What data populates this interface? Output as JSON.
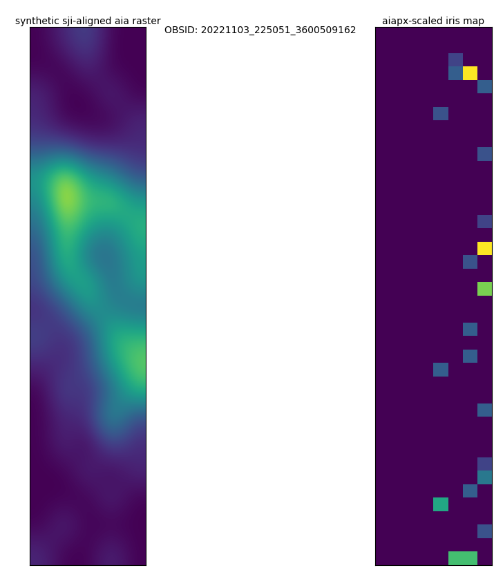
{
  "suptitle": "OBSID: 20221103_225051_3600509162",
  "chart_data": [
    {
      "type": "heatmap",
      "title": "synthetic sji-aligned aia raster",
      "tick_labels": false,
      "cells": [
        [
          0.2,
          0.25,
          0.3,
          0.2,
          0.2
        ],
        [
          0.2,
          0.2,
          0.25,
          0.2,
          0.2
        ],
        [
          0.25,
          0.2,
          0.2,
          0.25,
          0.2
        ],
        [
          0.25,
          0.2,
          0.2,
          0.2,
          0.25
        ],
        [
          0.3,
          0.3,
          0.25,
          0.25,
          0.25
        ],
        [
          0.45,
          0.6,
          0.45,
          0.4,
          0.3
        ],
        [
          0.4,
          0.65,
          0.5,
          0.55,
          0.45
        ],
        [
          0.35,
          0.55,
          0.45,
          0.4,
          0.5
        ],
        [
          0.3,
          0.55,
          0.35,
          0.35,
          0.45
        ],
        [
          0.3,
          0.45,
          0.5,
          0.35,
          0.45
        ],
        [
          0.25,
          0.3,
          0.45,
          0.4,
          0.35
        ],
        [
          0.3,
          0.25,
          0.3,
          0.5,
          0.5
        ],
        [
          0.25,
          0.25,
          0.3,
          0.45,
          0.55
        ],
        [
          0.2,
          0.3,
          0.25,
          0.35,
          0.5
        ],
        [
          0.2,
          0.25,
          0.25,
          0.45,
          0.3
        ],
        [
          0.2,
          0.25,
          0.2,
          0.3,
          0.25
        ],
        [
          0.2,
          0.2,
          0.25,
          0.2,
          0.25
        ],
        [
          0.2,
          0.2,
          0.2,
          0.25,
          0.2
        ],
        [
          0.2,
          0.25,
          0.2,
          0.2,
          0.2
        ],
        [
          0.25,
          0.2,
          0.2,
          0.25,
          0.2
        ]
      ]
    },
    {
      "type": "heatmap",
      "title": "aiapx-scaled iris map",
      "tick_labels": false,
      "cells": [
        [
          0,
          0,
          0,
          0,
          0,
          0,
          0,
          0
        ],
        [
          0,
          0,
          0,
          0,
          0,
          0,
          0,
          0
        ],
        [
          0,
          0,
          0,
          0,
          0,
          0.2,
          0,
          0
        ],
        [
          0,
          0,
          0,
          0,
          0,
          0.3,
          1.0,
          0
        ],
        [
          0,
          0,
          0,
          0,
          0,
          0,
          0,
          0.3
        ],
        [
          0,
          0,
          0,
          0,
          0,
          0,
          0,
          0
        ],
        [
          0,
          0,
          0,
          0,
          0.25,
          0,
          0,
          0
        ],
        [
          0,
          0,
          0,
          0,
          0,
          0,
          0,
          0
        ],
        [
          0,
          0,
          0,
          0,
          0,
          0,
          0,
          0
        ],
        [
          0,
          0,
          0,
          0,
          0,
          0,
          0,
          0.25
        ],
        [
          0,
          0,
          0,
          0,
          0,
          0,
          0,
          0
        ],
        [
          0,
          0,
          0,
          0,
          0,
          0,
          0,
          0
        ],
        [
          0,
          0,
          0,
          0,
          0,
          0,
          0,
          0
        ],
        [
          0,
          0,
          0,
          0,
          0,
          0,
          0,
          0
        ],
        [
          0,
          0,
          0,
          0,
          0,
          0,
          0,
          0.2
        ],
        [
          0,
          0,
          0,
          0,
          0,
          0,
          0,
          0
        ],
        [
          0,
          0,
          0,
          0,
          0,
          0,
          0,
          1.0
        ],
        [
          0,
          0,
          0,
          0,
          0,
          0,
          0.25,
          0
        ],
        [
          0,
          0,
          0,
          0,
          0,
          0,
          0,
          0
        ],
        [
          0,
          0,
          0,
          0,
          0,
          0,
          0,
          0.8
        ],
        [
          0,
          0,
          0,
          0,
          0,
          0,
          0,
          0
        ],
        [
          0,
          0,
          0,
          0,
          0,
          0,
          0,
          0
        ],
        [
          0,
          0,
          0,
          0,
          0,
          0,
          0.3,
          0
        ],
        [
          0,
          0,
          0,
          0,
          0,
          0,
          0,
          0
        ],
        [
          0,
          0,
          0,
          0,
          0,
          0,
          0.3,
          0
        ],
        [
          0,
          0,
          0,
          0,
          0.3,
          0,
          0,
          0
        ],
        [
          0,
          0,
          0,
          0,
          0,
          0,
          0,
          0
        ],
        [
          0,
          0,
          0,
          0,
          0,
          0,
          0,
          0
        ],
        [
          0,
          0,
          0,
          0,
          0,
          0,
          0,
          0.3
        ],
        [
          0,
          0,
          0,
          0,
          0,
          0,
          0,
          0
        ],
        [
          0,
          0,
          0,
          0,
          0,
          0,
          0,
          0
        ],
        [
          0,
          0,
          0,
          0,
          0,
          0,
          0,
          0
        ],
        [
          0,
          0,
          0,
          0,
          0,
          0,
          0,
          0.2
        ],
        [
          0,
          0,
          0,
          0,
          0,
          0,
          0,
          0.4
        ],
        [
          0,
          0,
          0,
          0,
          0,
          0,
          0.3,
          0
        ],
        [
          0,
          0,
          0,
          0,
          0.6,
          0,
          0,
          0
        ],
        [
          0,
          0,
          0,
          0,
          0,
          0,
          0,
          0
        ],
        [
          0,
          0,
          0,
          0,
          0,
          0,
          0,
          0.25
        ],
        [
          0,
          0,
          0,
          0,
          0,
          0,
          0,
          0
        ],
        [
          0,
          0,
          0,
          0,
          0,
          0.7,
          0.7,
          0
        ]
      ]
    }
  ]
}
